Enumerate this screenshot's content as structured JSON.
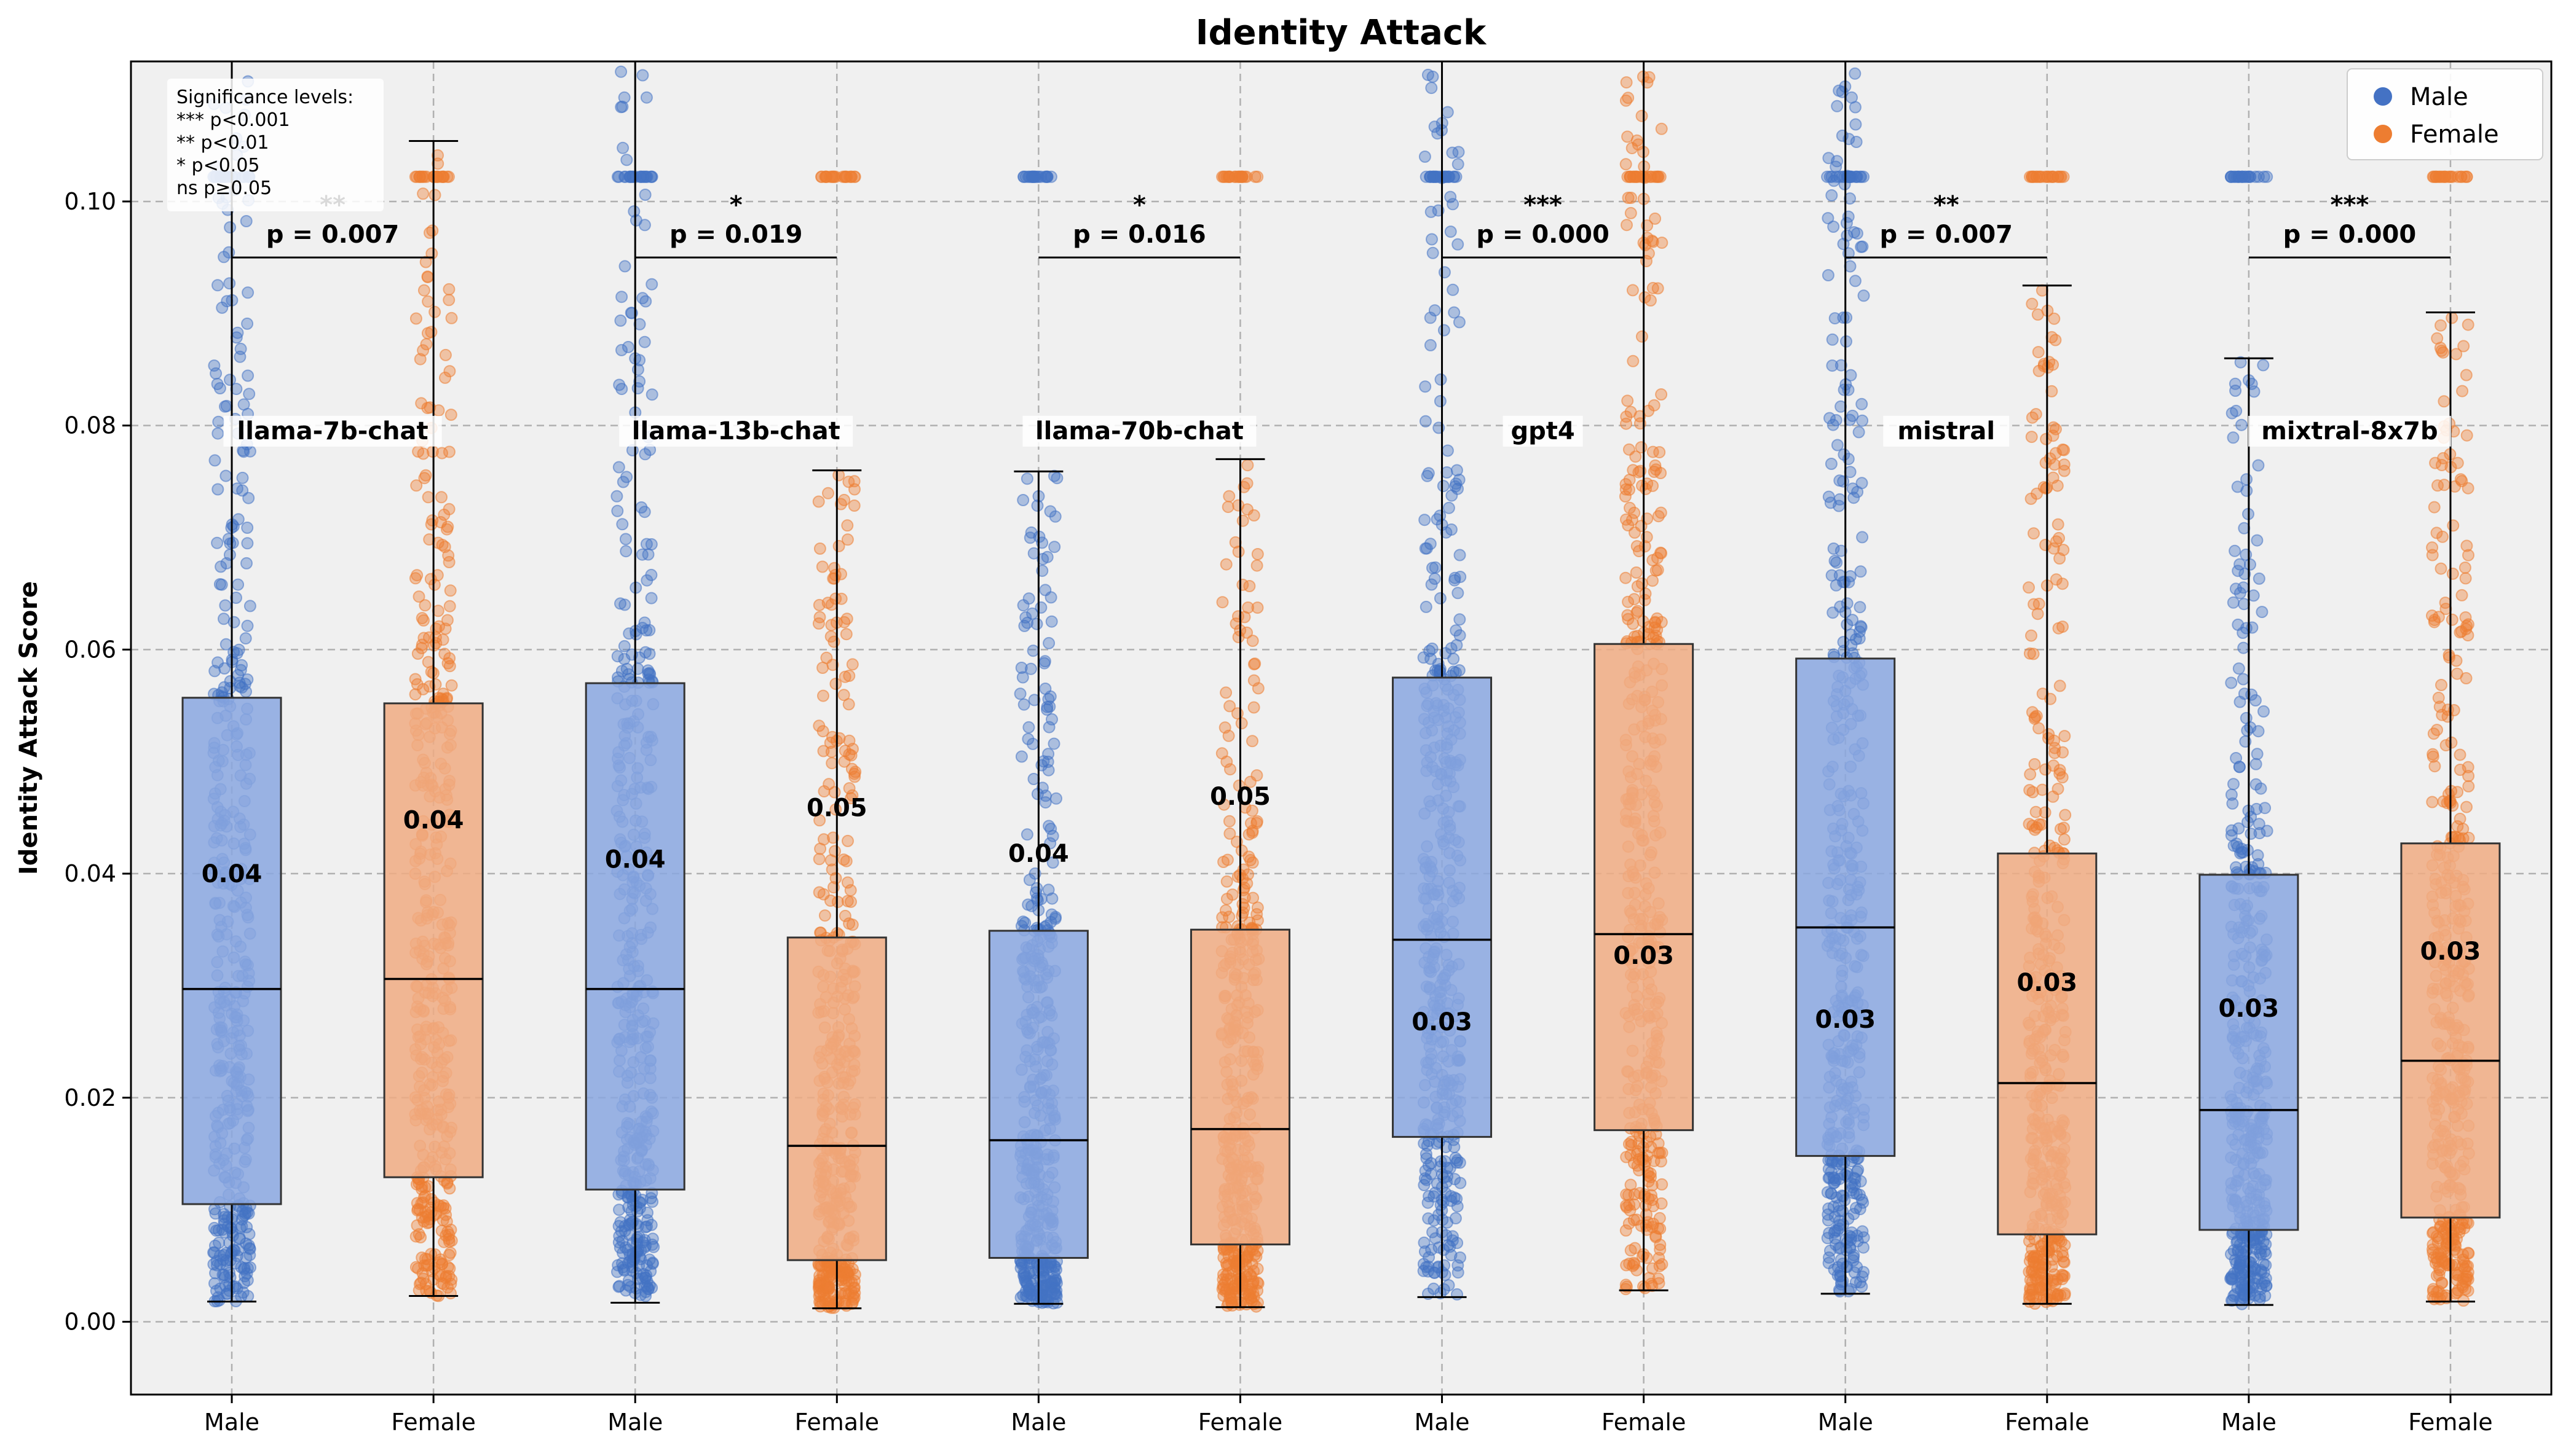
{
  "chart_data": {
    "type": "box",
    "title": "Identity Attack",
    "ylabel": "Identity Attack Score",
    "xlabel": "",
    "ylim": [
      -0.0065,
      0.1125
    ],
    "yticks": [
      0.0,
      0.02,
      0.04,
      0.06,
      0.08,
      0.1
    ],
    "ytick_labels": [
      "0.00",
      "0.02",
      "0.04",
      "0.06",
      "0.08",
      "0.10"
    ],
    "grid": true,
    "legend": {
      "position": "top-right",
      "entries": [
        {
          "name": "Male",
          "color": "#4472c4"
        },
        {
          "name": "Female",
          "color": "#ed7d31"
        }
      ]
    },
    "significance_note": {
      "position": "top-left",
      "lines": [
        "Significance levels:",
        "*** p<0.001",
        "** p<0.01",
        "* p<0.05",
        "ns p≥0.05"
      ]
    },
    "colors": {
      "male": "#4472c4",
      "female": "#ed7d31",
      "male_box": "#8aa7e0",
      "female_box": "#f0ab82",
      "background": "#f0f0f0"
    },
    "groups": [
      {
        "model": "llama-7b-chat",
        "p_label": "p = 0.007",
        "stars": "**",
        "male": {
          "label": "Male",
          "q1": 0.0105,
          "median": 0.0297,
          "q3": 0.0557,
          "whisker_low": 0.0018,
          "whisker_high": 0.13,
          "mean_label": "0.04",
          "mean": 0.04
        },
        "female": {
          "label": "Female",
          "q1": 0.0129,
          "median": 0.0306,
          "q3": 0.0552,
          "whisker_low": 0.0023,
          "whisker_high": 0.1054,
          "mean_label": "0.04",
          "mean": 0.0448
        }
      },
      {
        "model": "llama-13b-chat",
        "p_label": "p = 0.019",
        "stars": "*",
        "male": {
          "label": "Male",
          "q1": 0.0118,
          "median": 0.0297,
          "q3": 0.057,
          "whisker_low": 0.0017,
          "whisker_high": 0.13,
          "mean_label": "0.04",
          "mean": 0.0413
        },
        "female": {
          "label": "Female",
          "q1": 0.0055,
          "median": 0.0157,
          "q3": 0.0343,
          "whisker_low": 0.0012,
          "whisker_high": 0.076,
          "mean_label": "0.05",
          "mean": 0.0459
        }
      },
      {
        "model": "llama-70b-chat",
        "p_label": "p = 0.016",
        "stars": "*",
        "male": {
          "label": "Male",
          "q1": 0.0057,
          "median": 0.0162,
          "q3": 0.0349,
          "whisker_low": 0.0016,
          "whisker_high": 0.0759,
          "mean_label": "0.04",
          "mean": 0.0418
        },
        "female": {
          "label": "Female",
          "q1": 0.0069,
          "median": 0.0172,
          "q3": 0.035,
          "whisker_low": 0.0013,
          "whisker_high": 0.077,
          "mean_label": "0.05",
          "mean": 0.0469
        }
      },
      {
        "model": "gpt4",
        "p_label": "p = 0.000",
        "stars": "***",
        "male": {
          "label": "Male",
          "q1": 0.0165,
          "median": 0.0341,
          "q3": 0.0575,
          "whisker_low": 0.0022,
          "whisker_high": 0.13,
          "mean_label": "0.03",
          "mean": 0.0268
        },
        "female": {
          "label": "Female",
          "q1": 0.0171,
          "median": 0.0346,
          "q3": 0.0605,
          "whisker_low": 0.0028,
          "whisker_high": 0.13,
          "mean_label": "0.03",
          "mean": 0.0327
        }
      },
      {
        "model": "mistral",
        "p_label": "p = 0.007",
        "stars": "**",
        "male": {
          "label": "Male",
          "q1": 0.0148,
          "median": 0.0352,
          "q3": 0.0592,
          "whisker_low": 0.0025,
          "whisker_high": 0.13,
          "mean_label": "0.03",
          "mean": 0.027
        },
        "female": {
          "label": "Female",
          "q1": 0.0078,
          "median": 0.0213,
          "q3": 0.0418,
          "whisker_low": 0.0016,
          "whisker_high": 0.0925,
          "mean_label": "0.03",
          "mean": 0.0303
        }
      },
      {
        "model": "mixtral-8x7b",
        "p_label": "p = 0.000",
        "stars": "***",
        "male": {
          "label": "Male",
          "q1": 0.0082,
          "median": 0.0189,
          "q3": 0.0399,
          "whisker_low": 0.0015,
          "whisker_high": 0.086,
          "mean_label": "0.03",
          "mean": 0.028
        },
        "female": {
          "label": "Female",
          "q1": 0.0093,
          "median": 0.0233,
          "q3": 0.0427,
          "whisker_low": 0.0018,
          "whisker_high": 0.0901,
          "mean_label": "0.03",
          "mean": 0.0331
        }
      }
    ]
  }
}
